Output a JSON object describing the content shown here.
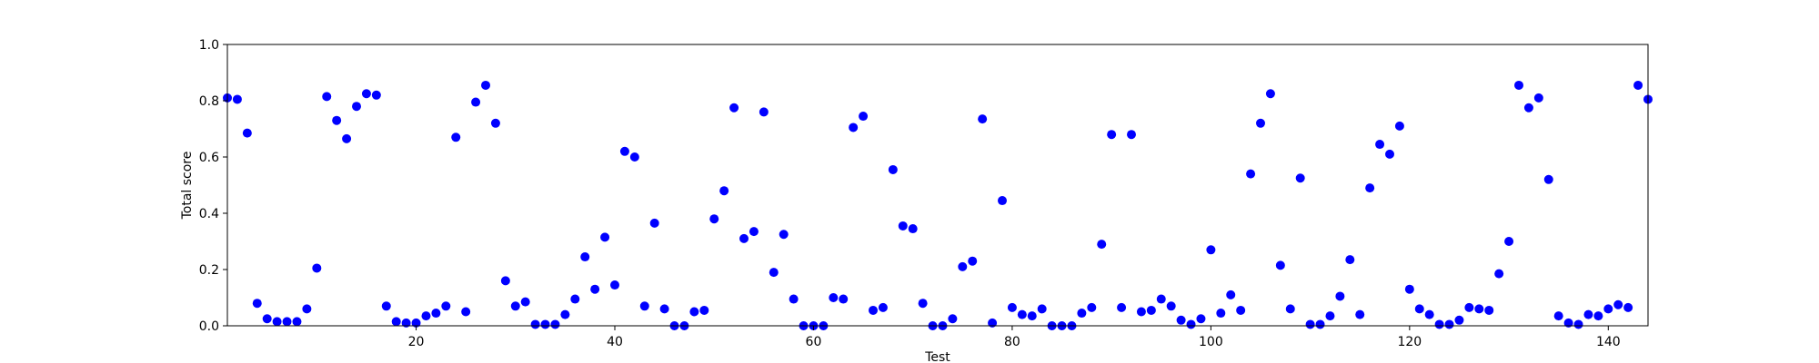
{
  "chart_data": {
    "type": "scatter",
    "title": "",
    "xlabel": "Test",
    "ylabel": "Total score",
    "xlim": [
      1,
      144
    ],
    "ylim": [
      0.0,
      1.0
    ],
    "x_ticks": [
      20,
      40,
      60,
      80,
      100,
      120,
      140
    ],
    "x_tick_labels": [
      "20",
      "40",
      "60",
      "80",
      "100",
      "120",
      "140"
    ],
    "y_ticks": [
      0.0,
      0.2,
      0.4,
      0.6,
      0.8,
      1.0
    ],
    "y_tick_labels": [
      "0.0",
      "0.2",
      "0.4",
      "0.6",
      "0.8",
      "1.0"
    ],
    "grid": false,
    "marker_color": "#0000ff",
    "series": [
      {
        "x": [
          1,
          2,
          3,
          4,
          5,
          6,
          7,
          8,
          9,
          10,
          11,
          12,
          13,
          14,
          15,
          16,
          17,
          18,
          19,
          20,
          21,
          22,
          23,
          24,
          25,
          26,
          27,
          28,
          29,
          30,
          31,
          32,
          33,
          34,
          35,
          36,
          37,
          38,
          39,
          40,
          41,
          42,
          43,
          44,
          45,
          46,
          47,
          48,
          49,
          50,
          51,
          52,
          53,
          54,
          55,
          56,
          57,
          58,
          59,
          60,
          61,
          62,
          63,
          64,
          65,
          66,
          67,
          68,
          69,
          70,
          71,
          72,
          73,
          74,
          75,
          76,
          77,
          78,
          79,
          80,
          81,
          82,
          83,
          84,
          85,
          86,
          87,
          88,
          89,
          90,
          91,
          92,
          93,
          94,
          95,
          96,
          97,
          98,
          99,
          100,
          101,
          102,
          103,
          104,
          105,
          106,
          107,
          108,
          109,
          110,
          111,
          112,
          113,
          114,
          115,
          116,
          117,
          118,
          119,
          120,
          121,
          122,
          123,
          124,
          125,
          126,
          127,
          128,
          129,
          130,
          131,
          132,
          133,
          134,
          135,
          136,
          137,
          138,
          139,
          140,
          141,
          142,
          143,
          144
        ],
        "y": [
          0.81,
          0.805,
          0.685,
          0.08,
          0.025,
          0.015,
          0.015,
          0.015,
          0.06,
          0.205,
          0.815,
          0.73,
          0.665,
          0.78,
          0.825,
          0.82,
          0.07,
          0.015,
          0.01,
          0.01,
          0.035,
          0.045,
          0.07,
          0.67,
          0.05,
          0.795,
          0.855,
          0.72,
          0.16,
          0.07,
          0.085,
          0.005,
          0.005,
          0.005,
          0.04,
          0.095,
          0.245,
          0.13,
          0.315,
          0.145,
          0.62,
          0.6,
          0.07,
          0.365,
          0.06,
          0.0,
          0.0,
          0.05,
          0.055,
          0.38,
          0.48,
          0.775,
          0.31,
          0.335,
          0.76,
          0.19,
          0.325,
          0.095,
          0.0,
          0.0,
          0.0,
          0.1,
          0.095,
          0.705,
          0.745,
          0.055,
          0.065,
          0.555,
          0.355,
          0.345,
          0.08,
          0.0,
          0.0,
          0.025,
          0.21,
          0.23,
          0.735,
          0.01,
          0.445,
          0.065,
          0.04,
          0.035,
          0.06,
          0.0,
          0.0,
          0.0,
          0.045,
          0.065,
          0.29,
          0.68,
          0.065,
          0.68,
          0.05,
          0.055,
          0.095,
          0.07,
          0.02,
          0.005,
          0.025,
          0.27,
          0.045,
          0.11,
          0.055,
          0.54,
          0.72,
          0.825,
          0.215,
          0.06,
          0.525,
          0.005,
          0.005,
          0.035,
          0.105,
          0.235,
          0.04,
          0.49,
          0.645,
          0.61,
          0.71,
          0.13,
          0.06,
          0.04,
          0.005,
          0.005,
          0.02,
          0.065,
          0.06,
          0.055,
          0.185,
          0.3,
          0.855,
          0.775,
          0.81,
          0.52,
          0.035,
          0.01,
          0.005,
          0.04,
          0.035,
          0.06,
          0.075,
          0.065,
          0.855,
          0.805
        ]
      }
    ]
  }
}
